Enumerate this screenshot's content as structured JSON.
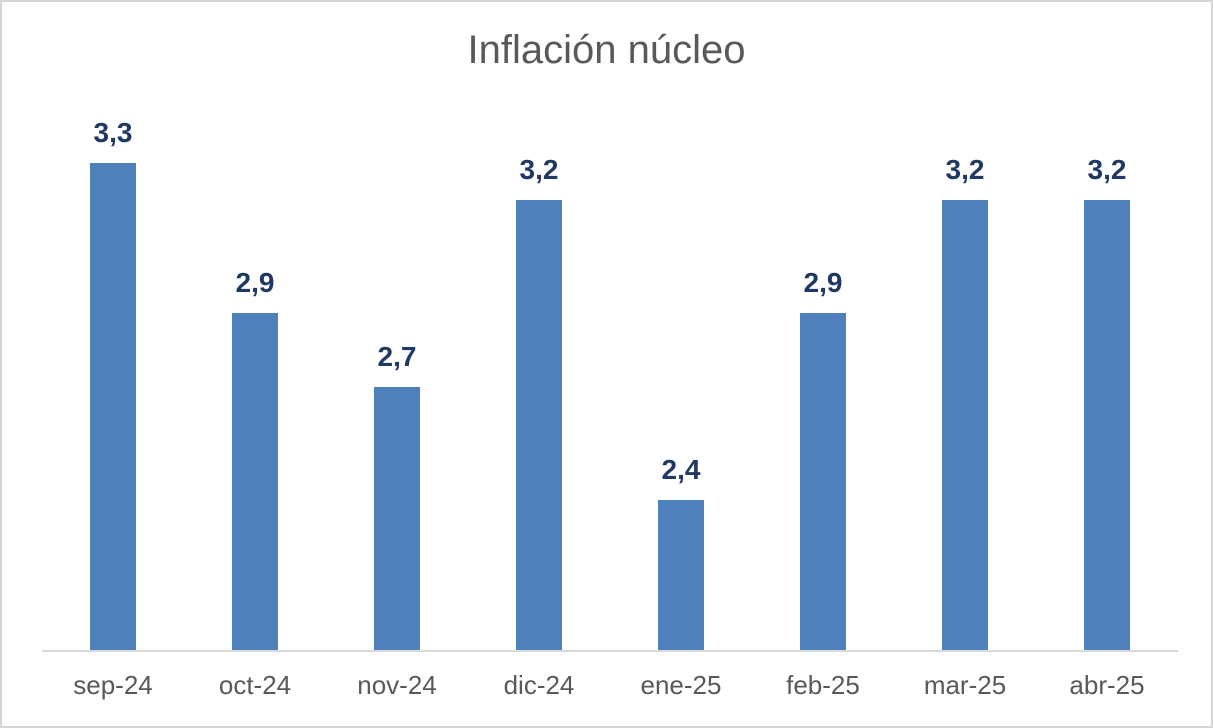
{
  "chart_data": {
    "type": "bar",
    "title": "Inflación núcleo",
    "categories": [
      "sep-24",
      "oct-24",
      "nov-24",
      "dic-24",
      "ene-25",
      "feb-25",
      "mar-25",
      "abr-25"
    ],
    "values": [
      3.3,
      2.9,
      2.7,
      3.2,
      2.4,
      2.9,
      3.2,
      3.2
    ],
    "value_labels": [
      "3,3",
      "2,9",
      "2,7",
      "3,2",
      "2,4",
      "2,9",
      "3,2",
      "3,2"
    ],
    "xlabel": "",
    "ylabel": "",
    "ylim": [
      2.0,
      3.4
    ],
    "grid": false,
    "legend": false,
    "y_axis_labels_visible": false,
    "data_labels_position": "above-bars",
    "decimal_separator": ",",
    "colors": {
      "bar": "#4E80BC",
      "value_label": "#1F3864",
      "title": "#595959",
      "tick_label": "#595959",
      "axis_line": "#D9D9D9",
      "frame_border": "#D5D5D5",
      "background": "#FFFFFF"
    }
  }
}
